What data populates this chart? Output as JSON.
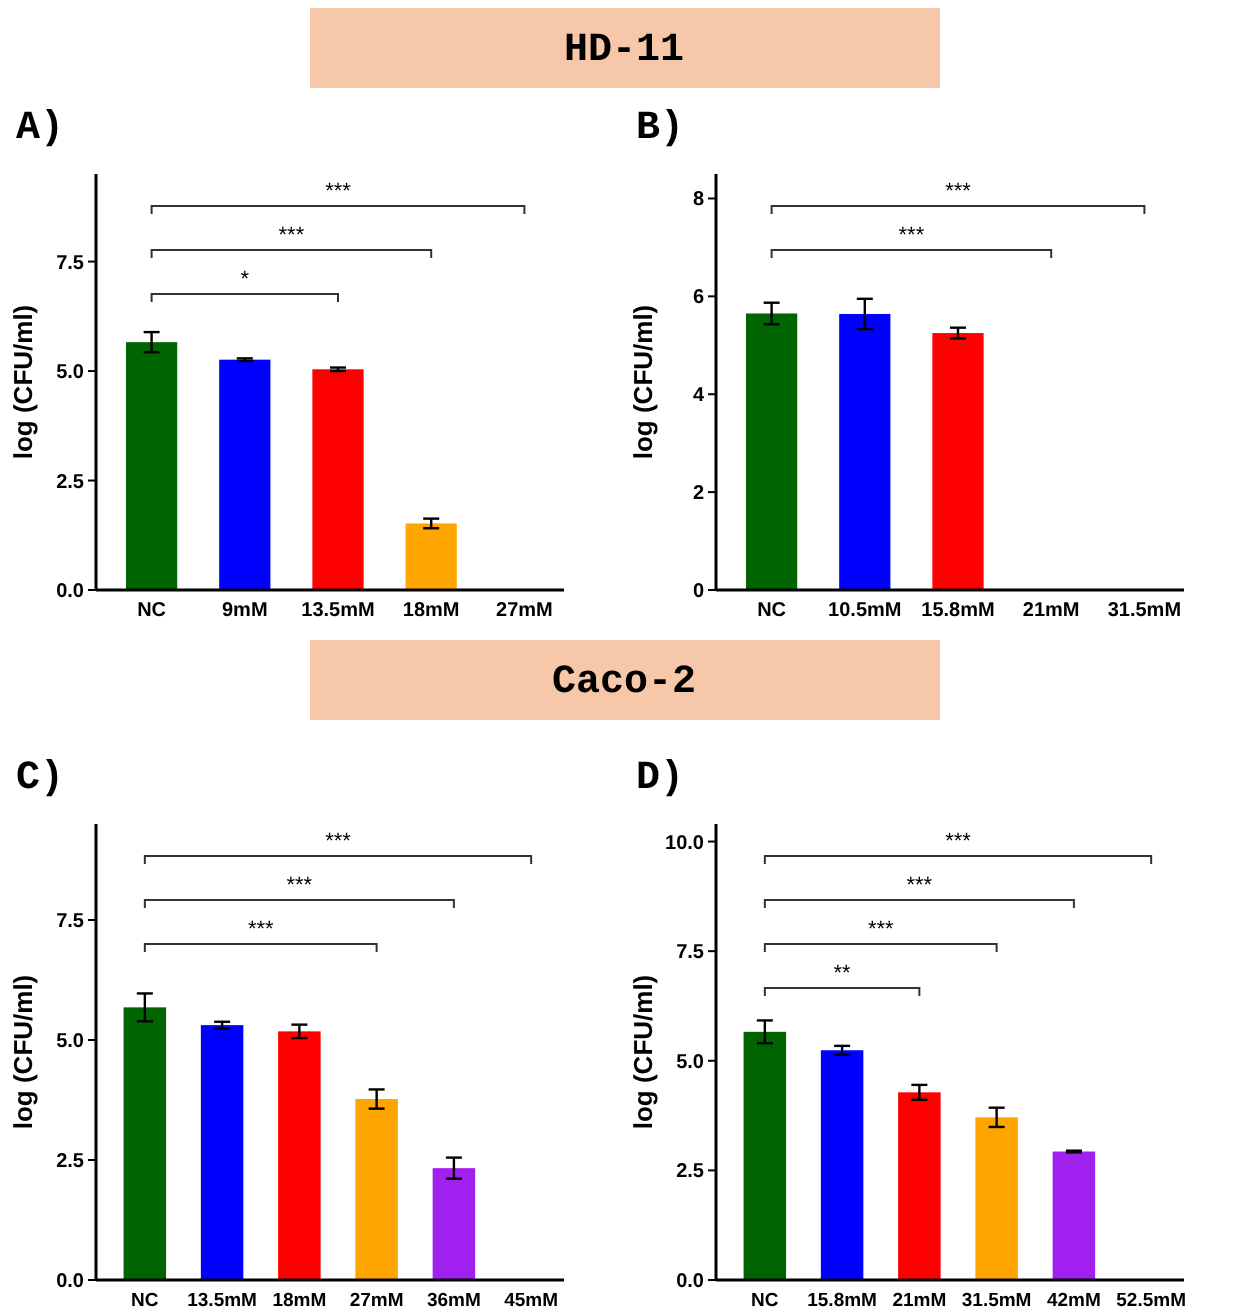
{
  "chart_data": [
    {
      "type": "bar",
      "title": "A)",
      "ylabel": "log (CFU/ml)",
      "categories": [
        "NC",
        "9mM",
        "13.5mM",
        "18mM",
        "27mM"
      ],
      "values": [
        5.66,
        5.26,
        5.04,
        1.52,
        0
      ],
      "errors": [
        0.23,
        0.03,
        0.04,
        0.11,
        null
      ],
      "colors": [
        "#006400",
        "#0000ff",
        "#ff0000",
        "#ffa500",
        "#a020f0"
      ],
      "ylim": [
        0,
        9.5
      ],
      "yticks": [
        {
          "value": 0,
          "label": "0.0"
        },
        2.5,
        {
          "value": 5,
          "label": "5.0"
        },
        7.5
      ],
      "annotations": [
        "HD-11",
        "*",
        "***",
        "***"
      ]
    },
    {
      "type": "bar",
      "title": "B)",
      "ylabel": "log (CFU/ml)",
      "categories": [
        "NC",
        "10.5mM",
        "15.8mM",
        "21mM",
        "31.5mM"
      ],
      "values": [
        5.65,
        5.64,
        5.25,
        0,
        0
      ],
      "errors": [
        0.22,
        0.31,
        0.11,
        null,
        null
      ],
      "colors": [
        "#006400",
        "#0000ff",
        "#ff0000",
        "#ffa500",
        "#a020f0"
      ],
      "ylim": [
        0,
        8.5
      ],
      "yticks": [
        0,
        2,
        4,
        6,
        8
      ],
      "annotations": [
        "***",
        "***"
      ]
    },
    {
      "type": "bar",
      "title": "C)",
      "ylabel": "log (CFU/ml)",
      "categories": [
        "NC",
        "13.5mM",
        "18mM",
        "27mM",
        "36mM",
        "45mM"
      ],
      "values": [
        5.68,
        5.31,
        5.18,
        3.77,
        2.33,
        0
      ],
      "errors": [
        0.29,
        0.07,
        0.14,
        0.2,
        0.22,
        null
      ],
      "colors": [
        "#006400",
        "#0000ff",
        "#ff0000",
        "#ffa500",
        "#a020f0",
        "#a020f0"
      ],
      "ylim": [
        0,
        9.5
      ],
      "yticks": [
        {
          "value": 0,
          "label": "0.0"
        },
        2.5,
        {
          "value": 5,
          "label": "5.0"
        },
        7.5
      ],
      "annotations": [
        "Caco-2",
        "***",
        "***",
        "***"
      ]
    },
    {
      "type": "bar",
      "title": "D)",
      "ylabel": "log (CFU/ml)",
      "categories": [
        "NC",
        "15.8mM",
        "21mM",
        "31.5mM",
        "42mM",
        "52.5mM"
      ],
      "values": [
        5.66,
        5.24,
        4.28,
        3.71,
        2.93,
        0
      ],
      "errors": [
        0.26,
        0.1,
        0.17,
        0.22,
        0.02,
        null
      ],
      "colors": [
        "#006400",
        "#0000ff",
        "#ff0000",
        "#ffa500",
        "#a020f0",
        "#a020f0"
      ],
      "ylim": [
        0,
        10.4
      ],
      "yticks": [
        {
          "value": 0,
          "label": "0.0"
        },
        2.5,
        {
          "value": 5,
          "label": "5.0"
        },
        7.5,
        {
          "value": 10,
          "label": "10.0"
        }
      ],
      "annotations": [
        "**",
        "***",
        "***",
        "***"
      ]
    }
  ]
}
